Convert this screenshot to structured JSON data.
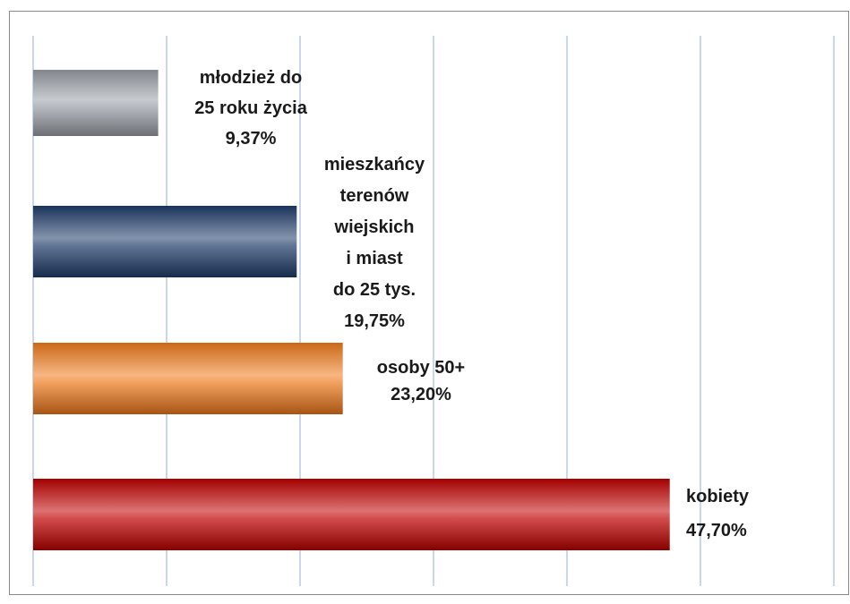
{
  "chart_data": {
    "type": "bar",
    "orientation": "horizontal",
    "categories": [
      [
        "młodzież do",
        "25 roku życia"
      ],
      [
        "mieszkańcy",
        "terenów",
        "wiejskich",
        "i miast",
        "do 25 tys."
      ],
      [
        "osoby 50+"
      ],
      [
        "kobiety"
      ]
    ],
    "values": [
      9.37,
      19.75,
      23.2,
      47.7
    ],
    "value_labels": [
      "9,37%",
      "19,75%",
      "23,20%",
      "47,70%"
    ],
    "colors": [
      "#9a9ea6",
      "#1f3c6a",
      "#ee7a1c",
      "#c00000"
    ],
    "xlim": [
      0,
      60
    ],
    "xticks": [
      0,
      10,
      20,
      30,
      40,
      50,
      60
    ],
    "grid": true
  }
}
